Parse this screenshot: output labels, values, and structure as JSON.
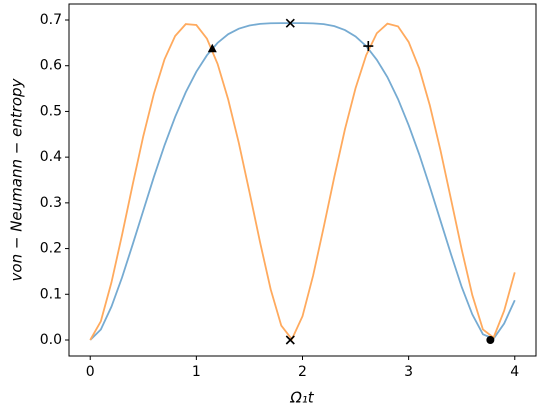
{
  "chart_data": {
    "type": "line",
    "xlabel": "Ω₁t",
    "ylabel": "von − Neumann − entropy",
    "x": [
      0,
      0.1,
      0.2,
      0.3,
      0.4,
      0.5,
      0.6,
      0.7,
      0.8,
      0.9,
      1.0,
      1.1,
      1.2,
      1.3,
      1.4,
      1.5,
      1.6,
      1.7,
      1.8,
      1.9,
      2.0,
      2.1,
      2.2,
      2.3,
      2.4,
      2.5,
      2.6,
      2.7,
      2.8,
      2.9,
      3.0,
      3.1,
      3.2,
      3.3,
      3.4,
      3.5,
      3.6,
      3.7,
      3.8,
      3.9,
      4.0
    ],
    "series": [
      {
        "color": "#76abd2",
        "values": [
          0,
          0.023,
          0.073,
          0.137,
          0.209,
          0.283,
          0.357,
          0.426,
          0.488,
          0.542,
          0.587,
          0.623,
          0.65,
          0.669,
          0.681,
          0.688,
          0.6916,
          0.6929,
          0.6931,
          0.6931,
          0.6931,
          0.6926,
          0.6909,
          0.6865,
          0.678,
          0.664,
          0.643,
          0.613,
          0.575,
          0.527,
          0.47,
          0.406,
          0.335,
          0.261,
          0.187,
          0.116,
          0.056,
          0.0125,
          0.0028,
          0.036,
          0.087
        ]
      },
      {
        "color": "#ffaa5e",
        "values": [
          0,
          0.041,
          0.126,
          0.23,
          0.34,
          0.446,
          0.539,
          0.614,
          0.665,
          0.691,
          0.689,
          0.659,
          0.604,
          0.526,
          0.431,
          0.324,
          0.214,
          0.111,
          0.0315,
          0.0016,
          0.052,
          0.141,
          0.247,
          0.357,
          0.461,
          0.551,
          0.623,
          0.671,
          0.692,
          0.686,
          0.652,
          0.594,
          0.513,
          0.415,
          0.307,
          0.198,
          0.098,
          0.023,
          0.0052,
          0.064,
          0.148
        ]
      }
    ],
    "markers": [
      {
        "marker": "^",
        "x": 1.15,
        "y": 0.637
      },
      {
        "marker": "x",
        "x": 1.885,
        "y": 0.693
      },
      {
        "marker": "x",
        "x": 1.885,
        "y": 0
      },
      {
        "marker": "+",
        "x": 2.62,
        "y": 0.643
      },
      {
        "marker": "o",
        "x": 3.77,
        "y": 0
      }
    ],
    "marker_color": "#000000",
    "xlim": [
      -0.2,
      4.2
    ],
    "ylim": [
      -0.035,
      0.735
    ],
    "xticks": [
      0,
      1,
      2,
      3,
      4
    ],
    "yticks": [
      {
        "value": 0,
        "label": "0.0"
      },
      0.1,
      0.2,
      0.3,
      0.4,
      0.5,
      0.6,
      0.7
    ]
  }
}
